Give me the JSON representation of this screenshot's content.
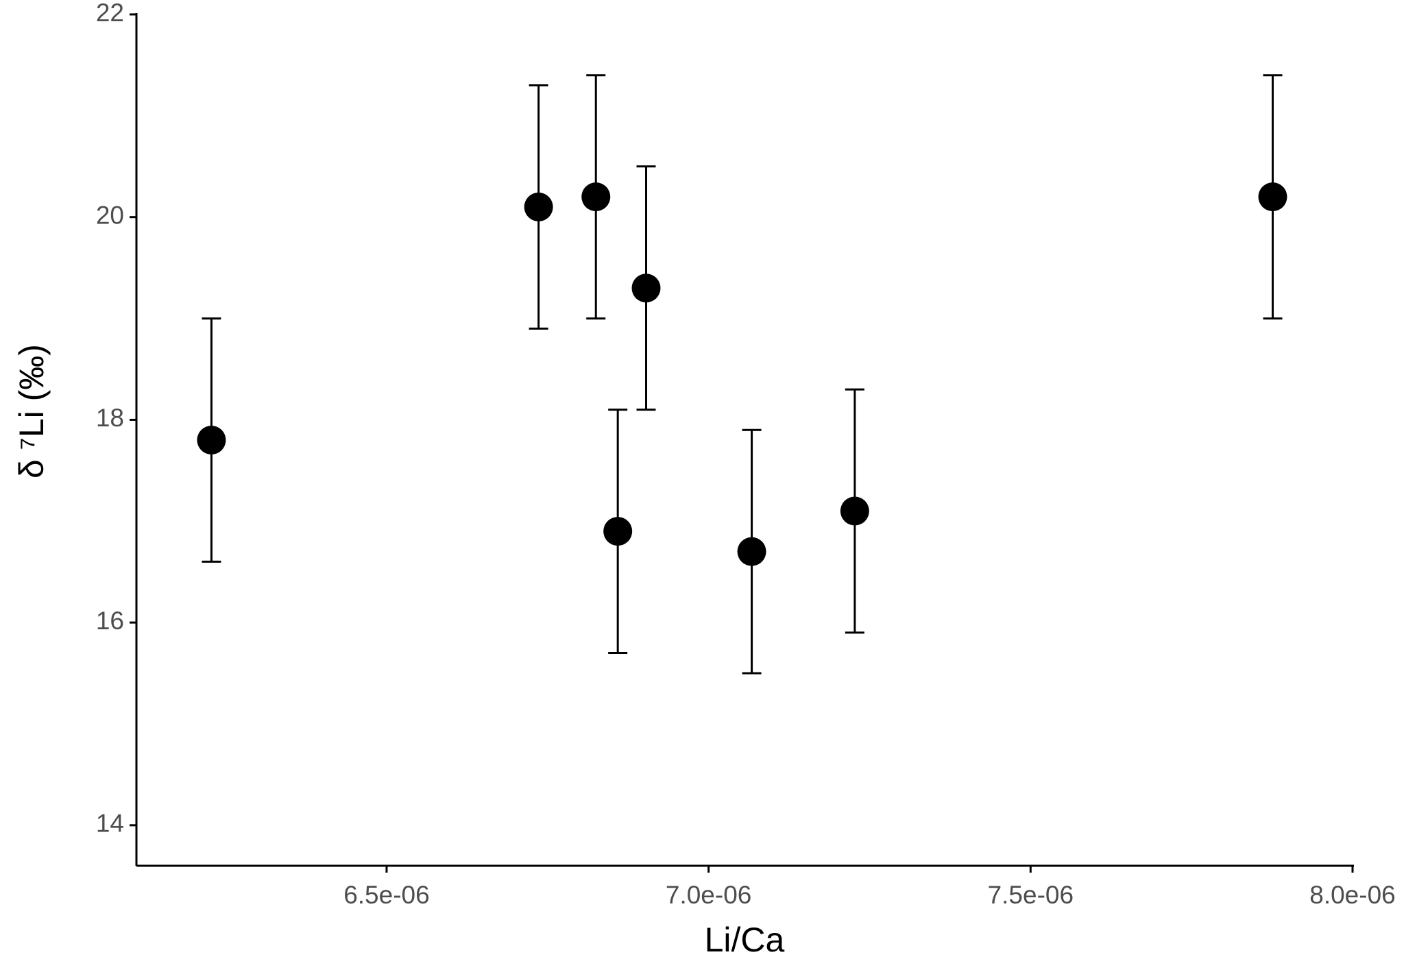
{
  "chart_data": {
    "type": "scatter",
    "xlabel": "Li/Ca",
    "ylabel": "δ ⁷Li (‰)",
    "x": [
      6.228e-06,
      6.736e-06,
      6.825e-06,
      6.903e-06,
      6.859e-06,
      7.067e-06,
      7.227e-06,
      7.876e-06
    ],
    "values": [
      17.8,
      20.1,
      20.2,
      19.3,
      16.9,
      16.7,
      17.1,
      20.2
    ],
    "error": [
      1.2,
      1.2,
      1.2,
      1.2,
      1.2,
      1.2,
      1.2,
      1.2
    ],
    "color": "#000000",
    "xlim": [
      6.1115e-06,
      8e-06
    ],
    "xticks": [
      {
        "value": 6.5e-06,
        "label": "6.5e-06"
      },
      {
        "value": 7e-06,
        "label": "7.0e-06"
      },
      {
        "value": 7.5e-06,
        "label": "7.5e-06"
      },
      {
        "value": 8e-06,
        "label": "8.0e-06"
      }
    ],
    "ylim": [
      13.6,
      22
    ],
    "yticks": [
      14,
      16,
      18,
      20,
      22
    ],
    "grid": false
  }
}
